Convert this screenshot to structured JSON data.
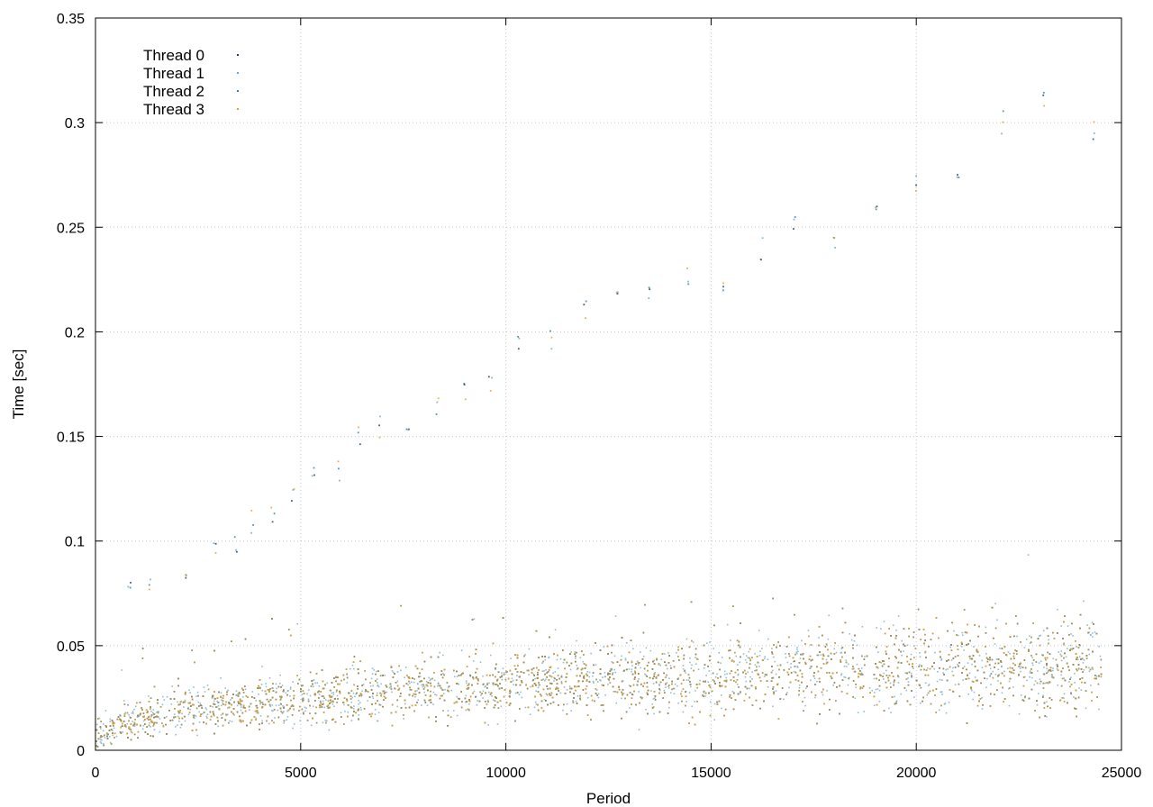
{
  "chart_data": {
    "type": "scatter",
    "title": "",
    "xlabel": "Period",
    "ylabel": "Time [sec]",
    "xlim": [
      0,
      25000
    ],
    "ylim": [
      0,
      0.35
    ],
    "xticks": [
      0,
      5000,
      10000,
      15000,
      20000,
      25000
    ],
    "yticks": [
      0,
      0.05,
      0.1,
      0.15,
      0.2,
      0.25,
      0.3,
      0.35
    ],
    "xtick_labels": [
      "0",
      "5000",
      "10000",
      "15000",
      "20000",
      "25000"
    ],
    "ytick_labels": [
      "0",
      "0.05",
      "0.1",
      "0.15",
      "0.2",
      "0.25",
      "0.3",
      "0.35"
    ],
    "grid": true,
    "legend_position": "top-left",
    "x_extent": [
      0,
      24500
    ],
    "series": [
      {
        "name": "Thread 0",
        "color": "#1a3a60",
        "marker": "dot"
      },
      {
        "name": "Thread 1",
        "color": "#6aa8c8",
        "marker": "dot"
      },
      {
        "name": "Thread 2",
        "color": "#2a7fa0",
        "marker": "dot"
      },
      {
        "name": "Thread 3",
        "color": "#e0a030",
        "marker": "dot"
      }
    ],
    "trend_points": [
      {
        "x": 0,
        "y": 0.007
      },
      {
        "x": 1000,
        "y": 0.015
      },
      {
        "x": 2500,
        "y": 0.02
      },
      {
        "x": 5000,
        "y": 0.025
      },
      {
        "x": 7500,
        "y": 0.029
      },
      {
        "x": 10000,
        "y": 0.032
      },
      {
        "x": 12500,
        "y": 0.034
      },
      {
        "x": 15000,
        "y": 0.036
      },
      {
        "x": 17500,
        "y": 0.038
      },
      {
        "x": 20000,
        "y": 0.04
      },
      {
        "x": 22500,
        "y": 0.042
      },
      {
        "x": 24500,
        "y": 0.038
      }
    ],
    "spread_band": 0.01,
    "outlier_points": [
      {
        "x": 800,
        "y": 0.075
      },
      {
        "x": 1300,
        "y": 0.08
      },
      {
        "x": 2200,
        "y": 0.085
      },
      {
        "x": 2900,
        "y": 0.1
      },
      {
        "x": 3400,
        "y": 0.1
      },
      {
        "x": 3800,
        "y": 0.11
      },
      {
        "x": 4300,
        "y": 0.115
      },
      {
        "x": 4800,
        "y": 0.12
      },
      {
        "x": 5300,
        "y": 0.132
      },
      {
        "x": 5900,
        "y": 0.135
      },
      {
        "x": 6400,
        "y": 0.15
      },
      {
        "x": 6900,
        "y": 0.155
      },
      {
        "x": 7600,
        "y": 0.158
      },
      {
        "x": 8300,
        "y": 0.163
      },
      {
        "x": 9000,
        "y": 0.17
      },
      {
        "x": 9600,
        "y": 0.175
      },
      {
        "x": 10300,
        "y": 0.193
      },
      {
        "x": 11100,
        "y": 0.195
      },
      {
        "x": 11900,
        "y": 0.21
      },
      {
        "x": 12700,
        "y": 0.215
      },
      {
        "x": 13500,
        "y": 0.22
      },
      {
        "x": 14400,
        "y": 0.225
      },
      {
        "x": 15300,
        "y": 0.225
      },
      {
        "x": 16200,
        "y": 0.24
      },
      {
        "x": 17000,
        "y": 0.25
      },
      {
        "x": 18000,
        "y": 0.245
      },
      {
        "x": 19000,
        "y": 0.26
      },
      {
        "x": 20000,
        "y": 0.27
      },
      {
        "x": 21000,
        "y": 0.28
      },
      {
        "x": 22100,
        "y": 0.3
      },
      {
        "x": 23100,
        "y": 0.31
      },
      {
        "x": 24300,
        "y": 0.295
      }
    ]
  }
}
